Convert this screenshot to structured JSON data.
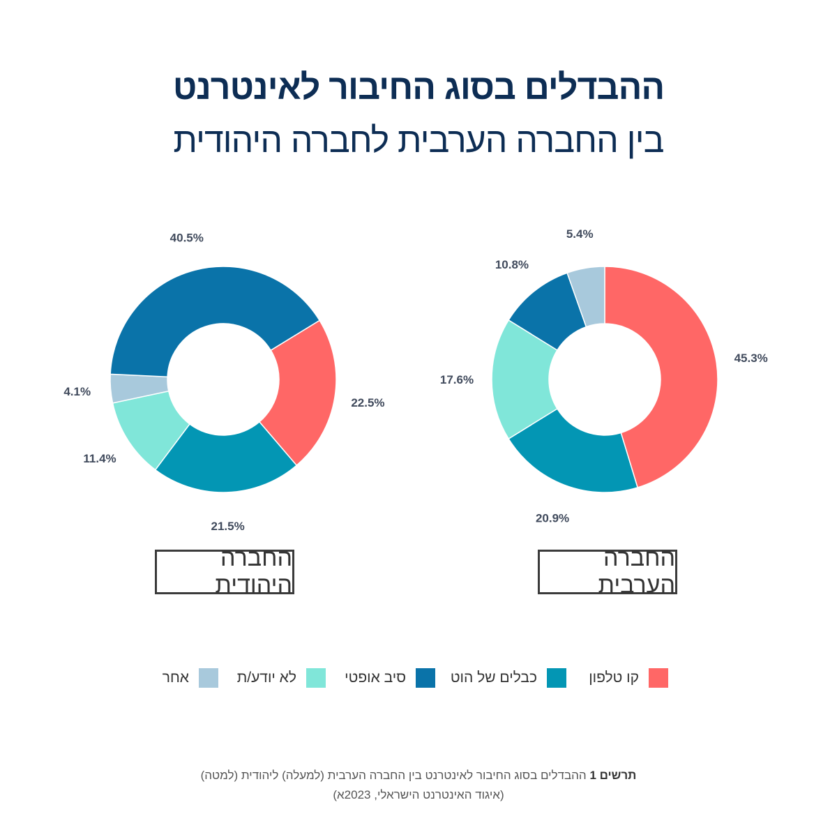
{
  "title": "ההבדלים בסוג החיבור לאינטרנט",
  "subtitle": "בין החברה הערבית לחברה היהודית",
  "colors": {
    "phone_line": "#ff6766",
    "hot_cables": "#0396b4",
    "fiber": "#0a73a9",
    "unknown": "#80e6d9",
    "other": "#a8c9dc"
  },
  "chart_data": [
    {
      "type": "pie",
      "donut": true,
      "group": "החברה היהודית",
      "slices": [
        {
          "key": "phone_line",
          "label": "22.5%",
          "value": 22.5
        },
        {
          "key": "hot_cables",
          "label": "21.5%",
          "value": 21.5
        },
        {
          "key": "unknown",
          "label": "11.4%",
          "value": 11.4
        },
        {
          "key": "other",
          "label": "4.1%",
          "value": 4.1
        },
        {
          "key": "fiber",
          "label": "40.5%",
          "value": 40.5
        }
      ]
    },
    {
      "type": "pie",
      "donut": true,
      "group": "החברה הערבית",
      "slices": [
        {
          "key": "phone_line",
          "label": "45.3%",
          "value": 45.3
        },
        {
          "key": "hot_cables",
          "label": "20.9%",
          "value": 20.9
        },
        {
          "key": "unknown",
          "label": "17.6%",
          "value": 17.6
        },
        {
          "key": "fiber",
          "label": "10.8%",
          "value": 10.8
        },
        {
          "key": "other",
          "label": "5.4%",
          "value": 5.4
        }
      ]
    }
  ],
  "legend": [
    {
      "key": "phone_line",
      "label": "קו טלפון"
    },
    {
      "key": "hot_cables",
      "label": "כבלים של הוט"
    },
    {
      "key": "fiber",
      "label": "סיב אופטי"
    },
    {
      "key": "unknown",
      "label": "לא יודע/ת"
    },
    {
      "key": "other",
      "label": "אחר"
    }
  ],
  "caption": {
    "bold": "תרשים 1",
    "line1": "ההבדלים בסוג החיבור לאינטרנט בין החברה הערבית (למעלה) ליהודית (למטה)",
    "line2": "(איגוד האינטרנט הישראלי, 2023א)"
  }
}
